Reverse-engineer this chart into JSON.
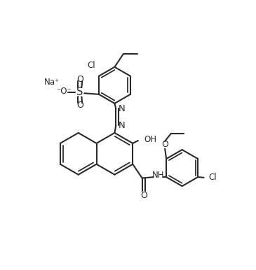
{
  "lc": "#2a2a2a",
  "bg": "#ffffff",
  "lw": 1.5,
  "figsize": [
    3.65,
    3.86
  ],
  "dpi": 100,
  "xlim": [
    0,
    9.5
  ],
  "ylim": [
    0,
    10.0
  ]
}
